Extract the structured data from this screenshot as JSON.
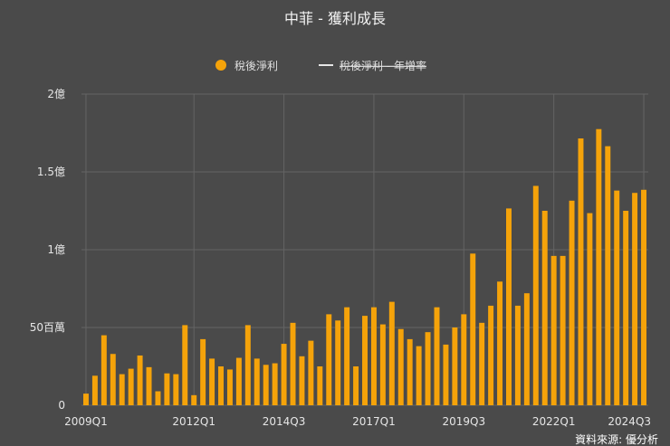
{
  "title": "中菲 - 獲利成長",
  "legend": [
    {
      "label": "稅後淨利",
      "color": "#f5a30a",
      "active": true
    },
    {
      "label": "稅後淨利 - 年增率",
      "color": "#e6e6e6",
      "active": false
    }
  ],
  "source": "資料來源: 優分析",
  "chart_data": {
    "type": "bar",
    "title": "中菲 - 獲利成長",
    "unit": "百萬",
    "ylim": [
      0,
      2000
    ],
    "yticks": [
      {
        "value": 0,
        "label": "0"
      },
      {
        "value": 500,
        "label": "50百萬"
      },
      {
        "value": 1000,
        "label": "1億"
      },
      {
        "value": 1500,
        "label": "1.5億"
      },
      {
        "value": 2000,
        "label": "2億"
      }
    ],
    "xtick_labels": [
      "2009Q1",
      "2012Q1",
      "2014Q3",
      "2017Q1",
      "2019Q3",
      "2022Q1",
      "2024Q3"
    ],
    "grid": true,
    "legend_position": "top",
    "color": "#f5a30a",
    "series": [
      {
        "name": "稅後淨利",
        "categories": [
          "2009Q1",
          "2009Q2",
          "2009Q3",
          "2009Q4",
          "2010Q1",
          "2010Q2",
          "2010Q3",
          "2010Q4",
          "2011Q1",
          "2011Q2",
          "2011Q3",
          "2011Q4",
          "2012Q1",
          "2012Q2",
          "2012Q3",
          "2012Q4",
          "2013Q1",
          "2013Q2",
          "2013Q3",
          "2013Q4",
          "2014Q1",
          "2014Q2",
          "2014Q3",
          "2014Q4",
          "2015Q1",
          "2015Q2",
          "2015Q3",
          "2015Q4",
          "2016Q1",
          "2016Q2",
          "2016Q3",
          "2016Q4",
          "2017Q1",
          "2017Q2",
          "2017Q3",
          "2017Q4",
          "2018Q1",
          "2018Q2",
          "2018Q3",
          "2018Q4",
          "2019Q1",
          "2019Q2",
          "2019Q3",
          "2019Q4",
          "2020Q1",
          "2020Q2",
          "2020Q3",
          "2020Q4",
          "2021Q1",
          "2021Q2",
          "2021Q3",
          "2021Q4",
          "2022Q1",
          "2022Q2",
          "2022Q3",
          "2022Q4",
          "2023Q1",
          "2023Q2",
          "2023Q3",
          "2023Q4",
          "2024Q1",
          "2024Q2",
          "2024Q3"
        ],
        "values": [
          75,
          190,
          450,
          330,
          200,
          235,
          320,
          245,
          90,
          205,
          200,
          515,
          65,
          425,
          300,
          250,
          230,
          305,
          515,
          300,
          260,
          270,
          395,
          530,
          315,
          415,
          250,
          585,
          545,
          630,
          250,
          575,
          630,
          520,
          665,
          490,
          425,
          380,
          470,
          630,
          390,
          500,
          585,
          975,
          530,
          640,
          795,
          1265,
          640,
          720,
          1410,
          1250,
          960,
          960,
          1315,
          1715,
          1235,
          1775,
          1665,
          1380,
          1250,
          1365,
          1385
        ]
      }
    ]
  }
}
